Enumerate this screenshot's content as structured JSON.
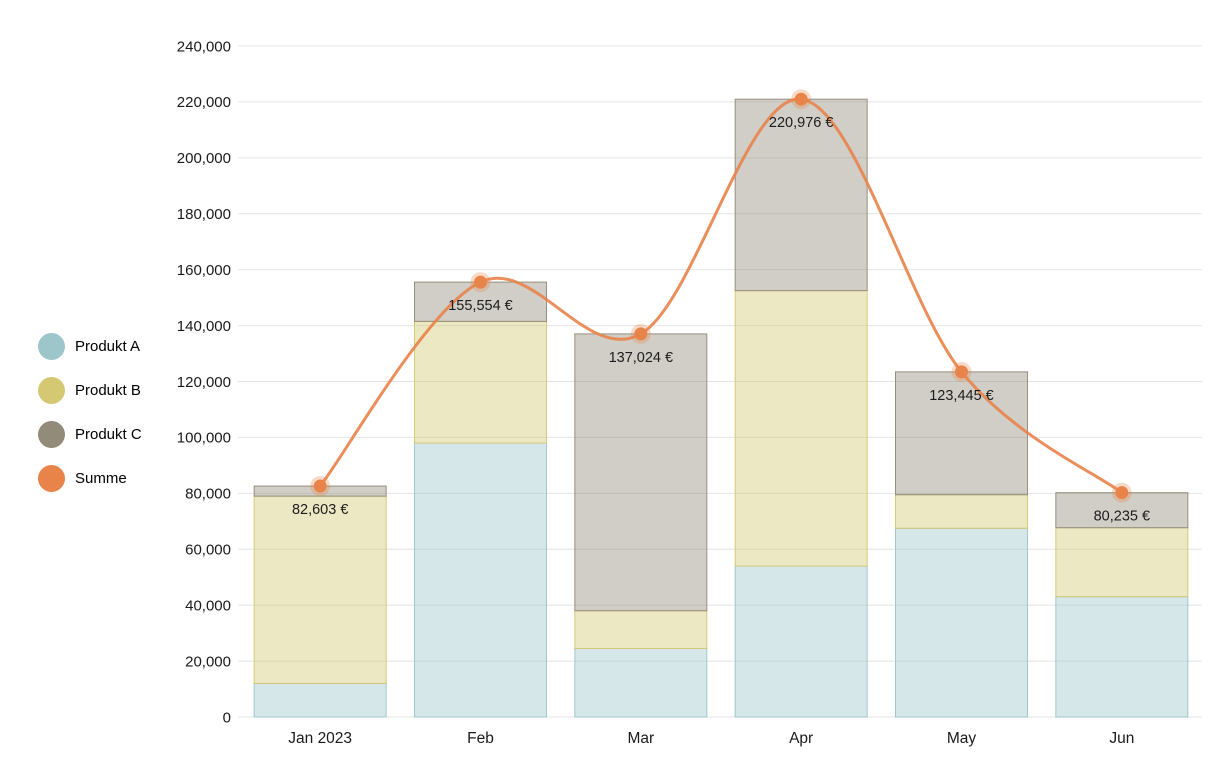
{
  "chart_data": {
    "type": "bar",
    "subtype": "stacked-columns-with-smoothed-line",
    "title": "",
    "xlabel": "",
    "ylabel": "",
    "categories": [
      "Jan 2023",
      "Feb",
      "Mar",
      "Apr",
      "May",
      "Jun"
    ],
    "series": [
      {
        "name": "Produkt A",
        "type": "column",
        "color": "#9dc6cb",
        "values": [
          12000,
          98000,
          24500,
          54000,
          67500,
          43000
        ]
      },
      {
        "name": "Produkt B",
        "type": "column",
        "color": "#d5c873",
        "values": [
          67000,
          43500,
          13500,
          98500,
          12000,
          24700
        ]
      },
      {
        "name": "Produkt C",
        "type": "column",
        "color": "#928b7a",
        "values": [
          3603,
          14054,
          99024,
          68476,
          43945,
          12535
        ]
      },
      {
        "name": "Summe",
        "type": "line",
        "color": "#e8834a",
        "values": [
          82603,
          155554,
          137024,
          220976,
          123445,
          80235
        ],
        "point_labels": [
          "82,603 €",
          "155,554 €",
          "137,024 €",
          "220,976 €",
          "123,445 €",
          "80,235 €"
        ]
      }
    ],
    "ylim": [
      0,
      240000
    ],
    "ytick_step": 20000,
    "ytick_labels": [
      "0",
      "20,000",
      "40,000",
      "60,000",
      "80,000",
      "100,000",
      "120,000",
      "140,000",
      "160,000",
      "180,000",
      "200,000",
      "220,000",
      "240,000"
    ],
    "grid": true,
    "legend_position": "left",
    "colors": {
      "grid_line": "#e4e4e4",
      "axis_text": "#1a1a1a",
      "point_label_text": "#1c1c1c",
      "background": "#ffffff"
    }
  }
}
